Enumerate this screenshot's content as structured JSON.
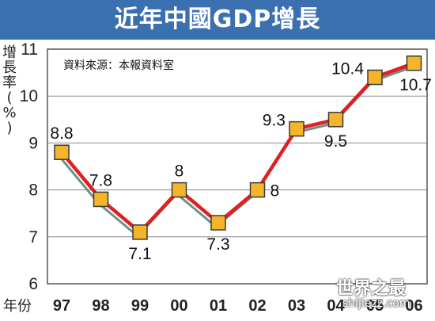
{
  "chart_data": {
    "type": "line",
    "title": "近年中國GDP增長",
    "source_note": "資料來源：本報資料室",
    "ylabel_chars": [
      "增",
      "長",
      "率",
      "(",
      "%",
      ")"
    ],
    "xlabel": "年份",
    "categories": [
      "97",
      "98",
      "99",
      "00",
      "01",
      "02",
      "03",
      "04",
      "05",
      "06"
    ],
    "series": [
      {
        "values": [
          8.8,
          7.8,
          7.1,
          8,
          7.3,
          8,
          9.3,
          9.5,
          10.4,
          10.7
        ]
      }
    ],
    "data_labels": [
      "8.8",
      "7.8",
      "7.1",
      "8",
      "7.3",
      "8",
      "9.3",
      "9.5",
      "10.4",
      "10.7"
    ],
    "label_side": [
      "above",
      "above",
      "below",
      "above",
      "below",
      "right",
      "left",
      "below",
      "left",
      "below"
    ],
    "ylim": [
      6,
      11
    ],
    "yticks": [
      "6",
      "7",
      "8",
      "9",
      "10",
      "11"
    ],
    "grid": true,
    "line_color": "#e02020",
    "marker_color": "#f5b52a",
    "title_bar_color": "#3a6fb0"
  },
  "watermark": {
    "line1": "世界之最",
    "line2": "shijiezz.com"
  }
}
